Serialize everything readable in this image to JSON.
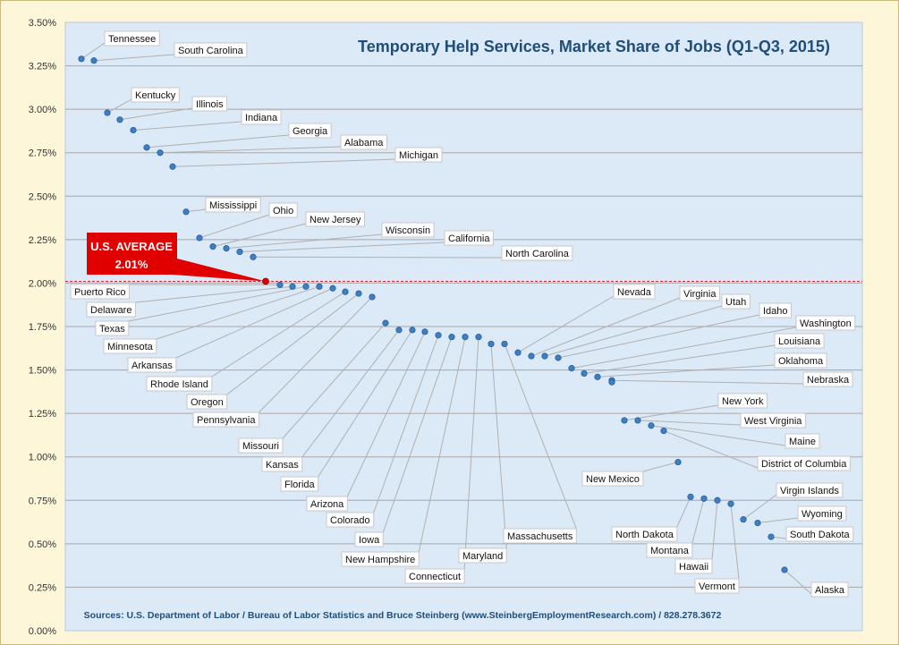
{
  "chart_data": {
    "type": "scatter",
    "title": "Temporary Help Services, Market Share of Jobs (Q1-Q3, 2015)",
    "source": "Sources: U.S. Department of Labor / Bureau of Labor Statistics and Bruce Steinberg (www.SteinbergEmploymentResearch.com) / 828.278.3672",
    "ylim": [
      0,
      3.5
    ],
    "y_unit": "%",
    "yticks": [
      "0.00%",
      "0.25%",
      "0.50%",
      "0.75%",
      "1.00%",
      "1.25%",
      "1.50%",
      "1.75%",
      "2.00%",
      "2.25%",
      "2.50%",
      "2.75%",
      "3.00%",
      "3.25%",
      "3.50%"
    ],
    "grid": true,
    "average": {
      "label": "U.S. AVERAGE",
      "value_text": "2.01%",
      "value": 2.01
    },
    "points": [
      {
        "state": "Tennessee",
        "value": 3.29
      },
      {
        "state": "South Carolina",
        "value": 3.28
      },
      {
        "state": "Kentucky",
        "value": 2.98
      },
      {
        "state": "Illinois",
        "value": 2.94
      },
      {
        "state": "Indiana",
        "value": 2.88
      },
      {
        "state": "Georgia",
        "value": 2.78
      },
      {
        "state": "Alabama",
        "value": 2.75
      },
      {
        "state": "Michigan",
        "value": 2.67
      },
      {
        "state": "Mississippi",
        "value": 2.41
      },
      {
        "state": "Ohio",
        "value": 2.26
      },
      {
        "state": "New Jersey",
        "value": 2.21
      },
      {
        "state": "Wisconsin",
        "value": 2.2
      },
      {
        "state": "California",
        "value": 2.18
      },
      {
        "state": "North Carolina",
        "value": 2.15
      },
      {
        "state": "Puerto Rico",
        "value": 1.99
      },
      {
        "state": "Delaware",
        "value": 1.98
      },
      {
        "state": "Texas",
        "value": 1.98
      },
      {
        "state": "Minnesota",
        "value": 1.98
      },
      {
        "state": "Arkansas",
        "value": 1.97
      },
      {
        "state": "Rhode Island",
        "value": 1.95
      },
      {
        "state": "Oregon",
        "value": 1.94
      },
      {
        "state": "Pennsylvania",
        "value": 1.92
      },
      {
        "state": "Missouri",
        "value": 1.77
      },
      {
        "state": "Kansas",
        "value": 1.73
      },
      {
        "state": "Florida",
        "value": 1.73
      },
      {
        "state": "Arizona",
        "value": 1.72
      },
      {
        "state": "Colorado",
        "value": 1.7
      },
      {
        "state": "Iowa",
        "value": 1.69
      },
      {
        "state": "New Hampshire",
        "value": 1.69
      },
      {
        "state": "Connecticut",
        "value": 1.69
      },
      {
        "state": "Maryland",
        "value": 1.65
      },
      {
        "state": "Massachusetts",
        "value": 1.65
      },
      {
        "state": "Nevada",
        "value": 1.6
      },
      {
        "state": "Virginia",
        "value": 1.58
      },
      {
        "state": "Utah",
        "value": 1.58
      },
      {
        "state": "Idaho",
        "value": 1.57
      },
      {
        "state": "Washington",
        "value": 1.51
      },
      {
        "state": "Louisiana",
        "value": 1.48
      },
      {
        "state": "Oklahoma",
        "value": 1.46
      },
      {
        "state": "Nebraska",
        "value": 1.44
      },
      {
        "state": "Nebraska",
        "value": 1.43
      },
      {
        "state": "New York",
        "value": 1.21
      },
      {
        "state": "West Virginia",
        "value": 1.21
      },
      {
        "state": "Maine",
        "value": 1.18
      },
      {
        "state": "District of Columbia",
        "value": 1.15
      },
      {
        "state": "New Mexico",
        "value": 0.97
      },
      {
        "state": "North Dakota",
        "value": 0.77
      },
      {
        "state": "Montana",
        "value": 0.76
      },
      {
        "state": "Hawaii",
        "value": 0.75
      },
      {
        "state": "Vermont",
        "value": 0.73
      },
      {
        "state": "Virgin Islands",
        "value": 0.64
      },
      {
        "state": "Wyoming",
        "value": 0.62
      },
      {
        "state": "South Dakota",
        "value": 0.54
      },
      {
        "state": "Alaska",
        "value": 0.35
      }
    ]
  }
}
